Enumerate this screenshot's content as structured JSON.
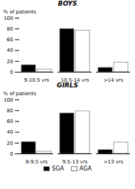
{
  "chart_data": [
    {
      "type": "bar",
      "title": "BOYS",
      "y_label": "% of patients",
      "categories": [
        "9-10.5 yrs",
        "10.5-14 yrs",
        ">14 yrs"
      ],
      "series": [
        {
          "name": "SGA",
          "color": "#000000",
          "values": [
            13,
            80,
            8
          ]
        },
        {
          "name": "AGA",
          "color": "#ffffff",
          "values": [
            5,
            77,
            18
          ]
        }
      ],
      "ylim": [
        0,
        100
      ],
      "yticks": [
        0,
        20,
        40,
        60,
        80,
        100
      ]
    },
    {
      "type": "bar",
      "title": "GIRLS",
      "y_label": "% of patients",
      "categories": [
        "8-9.5 yrs",
        "9.5-13 yrs",
        ">13 yrs"
      ],
      "series": [
        {
          "name": "SGA",
          "color": "#000000",
          "values": [
            22,
            75,
            7
          ]
        },
        {
          "name": "AGA",
          "color": "#ffffff",
          "values": [
            4,
            79,
            21
          ]
        }
      ],
      "ylim": [
        0,
        100
      ],
      "yticks": [
        0,
        20,
        40,
        60,
        80,
        100
      ],
      "legend": "bottom"
    }
  ]
}
